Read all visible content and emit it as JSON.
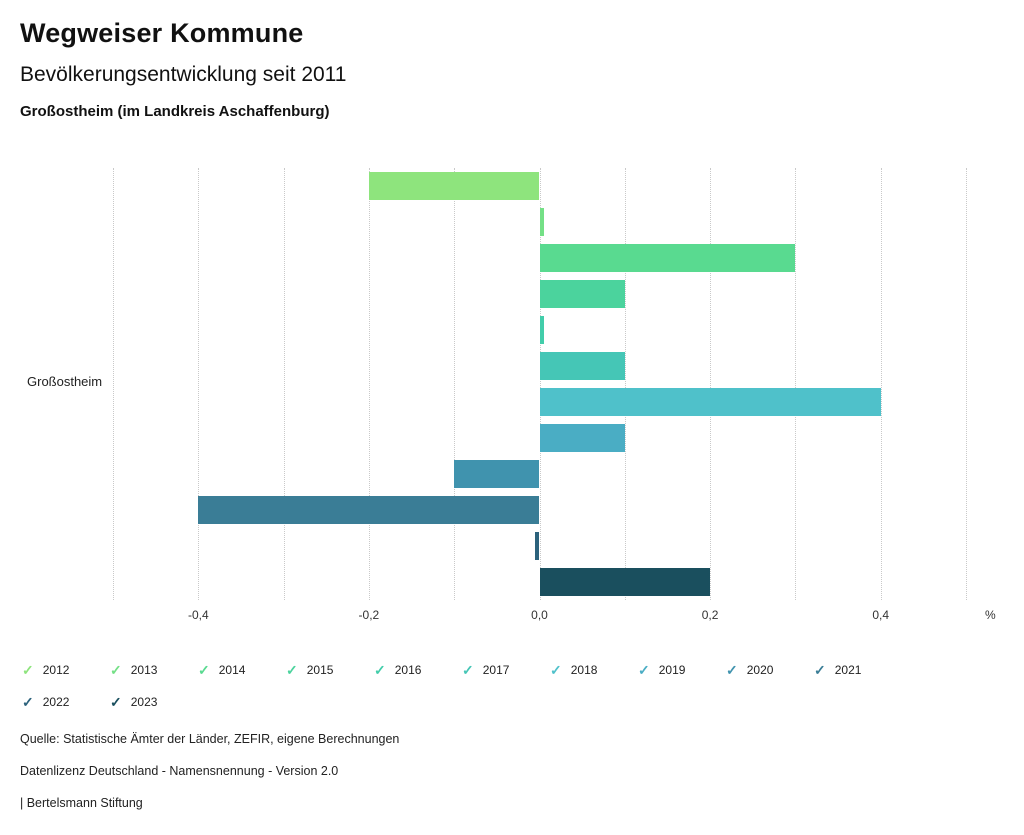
{
  "header": {
    "title": "Wegweiser Kommune",
    "subtitle": "Bevölkerungsentwicklung seit 2011",
    "region": "Großostheim (im Landkreis Aschaffenburg)"
  },
  "chart_data": {
    "type": "bar",
    "orientation": "horizontal",
    "category": "Großostheim",
    "series": [
      {
        "name": "2012",
        "value": -0.2,
        "color": "#8ee47d"
      },
      {
        "name": "2013",
        "value": 0.005,
        "color": "#74e086"
      },
      {
        "name": "2014",
        "value": 0.3,
        "color": "#59da90"
      },
      {
        "name": "2015",
        "value": 0.1,
        "color": "#4bd39d"
      },
      {
        "name": "2016",
        "value": 0.005,
        "color": "#42cdaa"
      },
      {
        "name": "2017",
        "value": 0.1,
        "color": "#45c6b6"
      },
      {
        "name": "2018",
        "value": 0.4,
        "color": "#4fc1ca"
      },
      {
        "name": "2019",
        "value": 0.1,
        "color": "#4aadc4"
      },
      {
        "name": "2020",
        "value": -0.1,
        "color": "#4093ae"
      },
      {
        "name": "2021",
        "value": -0.4,
        "color": "#3a7d96"
      },
      {
        "name": "2022",
        "value": -0.005,
        "color": "#2c627c"
      },
      {
        "name": "2023",
        "value": 0.2,
        "color": "#1a4f5e"
      }
    ],
    "xlim": [
      -0.5,
      0.5
    ],
    "grid_step": 0.1,
    "ticks": [
      {
        "value": -0.4,
        "label": "-0,4"
      },
      {
        "value": -0.2,
        "label": "-0,2"
      },
      {
        "value": 0.0,
        "label": "0,0"
      },
      {
        "value": 0.2,
        "label": "0,2"
      },
      {
        "value": 0.4,
        "label": "0,4"
      }
    ],
    "unit": "%",
    "legend_check_glyph": "✓",
    "grid": "dotted-vertical",
    "legend_position": "bottom"
  },
  "footer": {
    "source": "Quelle: Statistische Ämter der Länder, ZEFIR, eigene Berechnungen",
    "license": "Datenlizenz Deutschland - Namensnennung - Version 2.0",
    "brand": "| Bertelsmann Stiftung"
  }
}
